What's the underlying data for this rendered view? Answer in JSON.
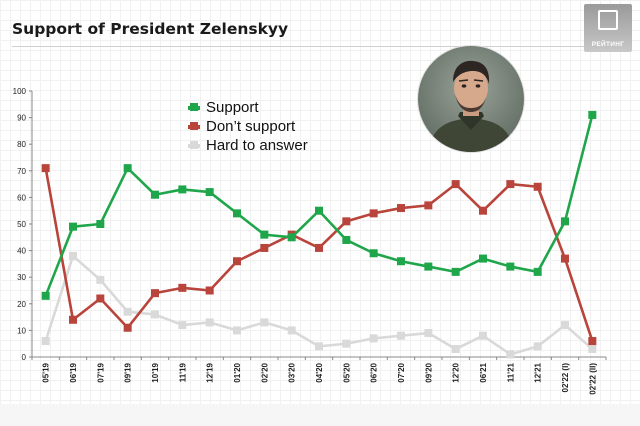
{
  "title": "Support of President Zelenskyy",
  "logo_text": "РЕЙТИНГ",
  "colors": {
    "support": "#1fa64a",
    "dont_support": "#b8443b",
    "hard_to_answer": "#d9d9d9"
  },
  "icons": {
    "avatar": "portrait-photo",
    "logo": "rating-logo"
  },
  "chart_data": {
    "type": "line",
    "title": "Support of President Zelenskyy",
    "xlabel": "",
    "ylabel": "",
    "ylim": [
      0,
      100
    ],
    "yticks": [
      0,
      10,
      20,
      30,
      40,
      50,
      60,
      70,
      80,
      90,
      100
    ],
    "grid": false,
    "legend_position": "top-center",
    "categories": [
      "05'19",
      "06'19",
      "07'19",
      "09'19",
      "10'19",
      "11'19",
      "12'19",
      "01'20",
      "02'20",
      "03'20",
      "04'20",
      "05'20",
      "06'20",
      "07'20",
      "09'20",
      "12'20",
      "06'21",
      "11'21",
      "12'21",
      "02'22 (I)",
      "02'22 (II)"
    ],
    "series": [
      {
        "name": "Support",
        "color": "#1fa64a",
        "values": [
          23,
          49,
          50,
          71,
          61,
          63,
          62,
          54,
          46,
          45,
          55,
          44,
          39,
          36,
          34,
          32,
          37,
          34,
          32,
          51,
          91
        ]
      },
      {
        "name": "Don’t support",
        "color": "#b8443b",
        "values": [
          71,
          14,
          22,
          11,
          24,
          26,
          25,
          36,
          41,
          46,
          41,
          51,
          54,
          56,
          57,
          65,
          55,
          65,
          64,
          37,
          6
        ]
      },
      {
        "name": "Hard to answer",
        "color": "#d9d9d9",
        "values": [
          6,
          38,
          29,
          17,
          16,
          12,
          13,
          10,
          13,
          10,
          4,
          5,
          7,
          8,
          9,
          3,
          8,
          1,
          4,
          12,
          3
        ]
      }
    ]
  }
}
